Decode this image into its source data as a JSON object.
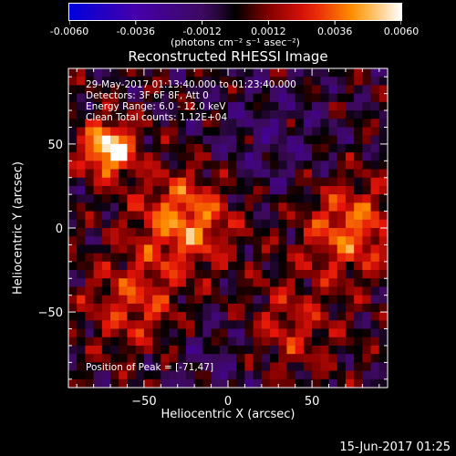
{
  "colorbar": {
    "ticks": [
      "-0.0060",
      "-0.0036",
      "-0.0012",
      "0.0012",
      "0.0036",
      "0.0060"
    ],
    "units": "(photons cm⁻² s⁻¹ asec⁻²)"
  },
  "chart_data": {
    "type": "heatmap",
    "title": "Reconstructed RHESSI Image",
    "xlabel": "Heliocentric X (arcsec)",
    "ylabel": "Heliocentric Y (arcsec)",
    "xlim": [
      -95,
      95
    ],
    "ylim": [
      -95,
      95
    ],
    "xticks": [
      -50,
      0,
      50
    ],
    "yticks": [
      50,
      0,
      -50
    ],
    "xtick_labels": [
      "−50",
      "0",
      "50"
    ],
    "ytick_labels": [
      "50",
      "0",
      "−50"
    ],
    "zlim": [
      -0.006,
      0.006
    ],
    "colormap": "blue-purple-red-yellow-white",
    "sources": [
      {
        "x": -71,
        "y": 47,
        "value": 0.006
      },
      {
        "x": -25,
        "y": 5,
        "value": 0.004
      },
      {
        "x": 72,
        "y": 0,
        "value": 0.0035
      },
      {
        "x": -55,
        "y": -45,
        "value": 0.0026
      },
      {
        "x": 35,
        "y": -60,
        "value": 0.0022
      }
    ],
    "annotations": [
      "29-May-2017 01:13:40.000 to 01:23:40.000",
      "Detectors: 3F 6F 8F, Att 0",
      "Energy Range: 6.0 - 12.0 keV",
      "Clean     Total counts: 1.12E+04"
    ],
    "peak_label": "Position of Peak = [-71,47]"
  },
  "timestamp": "15-Jun-2017 01:25"
}
